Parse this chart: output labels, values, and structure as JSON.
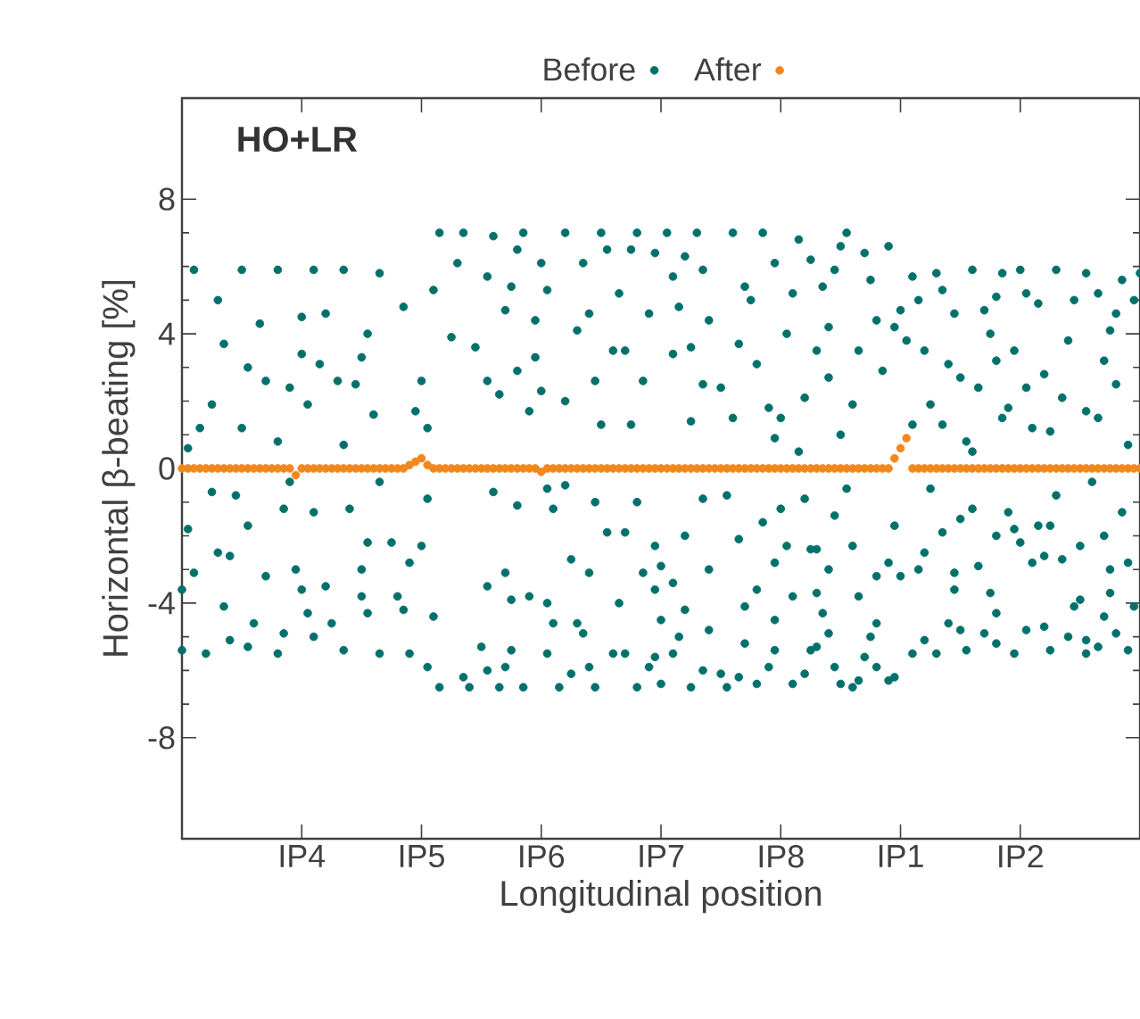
{
  "chart_data": {
    "type": "scatter",
    "xlabel": "Longitudinal position",
    "ylabel": "Horizontal β-beating [%]",
    "annotations": [
      "HO+LR"
    ],
    "legend": "top",
    "marker": "circle",
    "categories": [
      null,
      null,
      null,
      null,
      null,
      null,
      null,
      null,
      null,
      null,
      null,
      null,
      null,
      null,
      null,
      null,
      null,
      null,
      null,
      null,
      "IP4",
      null,
      null,
      null,
      null,
      null,
      null,
      null,
      null,
      null,
      null,
      null,
      null,
      null,
      null,
      null,
      null,
      null,
      null,
      null,
      "IP5",
      null,
      null,
      null,
      null,
      null,
      null,
      null,
      null,
      null,
      null,
      null,
      null,
      null,
      null,
      null,
      null,
      null,
      null,
      null,
      "IP6",
      null,
      null,
      null,
      null,
      null,
      null,
      null,
      null,
      null,
      null,
      null,
      null,
      null,
      null,
      null,
      null,
      null,
      null,
      null,
      "IP7",
      null,
      null,
      null,
      null,
      null,
      null,
      null,
      null,
      null,
      null,
      null,
      null,
      null,
      null,
      null,
      null,
      null,
      null,
      null,
      "IP8",
      null,
      null,
      null,
      null,
      null,
      null,
      null,
      null,
      null,
      null,
      null,
      null,
      null,
      null,
      null,
      null,
      null,
      null,
      null,
      "IP1",
      null,
      null,
      null,
      null,
      null,
      null,
      null,
      null,
      null,
      null,
      null,
      null,
      null,
      null,
      null,
      null,
      null,
      null,
      null,
      "IP2",
      null,
      null,
      null,
      null,
      null,
      null,
      null,
      null,
      null,
      null,
      null,
      null,
      null,
      null,
      null,
      null,
      null,
      null,
      null,
      null
    ],
    "ylim": [
      -11,
      11
    ],
    "yticks": [
      -8,
      -4,
      0,
      4,
      8
    ],
    "series": [
      {
        "name": "Before",
        "color": "#00706b",
        "values": [
          null,
          null,
          5.9,
          null,
          null,
          null,
          5.0,
          3.7,
          null,
          null,
          5.9,
          null,
          null,
          4.3,
          null,
          null,
          5.9,
          null,
          null,
          null,
          4.5,
          null,
          5.9,
          null,
          4.6,
          null,
          null,
          5.9,
          null,
          null,
          null,
          4.0,
          null,
          5.8,
          null,
          null,
          null,
          4.8,
          null,
          null,
          null,
          null,
          5.3,
          7.0,
          null,
          3.9,
          6.1,
          7.0,
          null,
          3.6,
          null,
          5.7,
          6.9,
          null,
          4.7,
          5.4,
          6.5,
          7.0,
          null,
          4.4,
          6.1,
          5.3,
          null,
          null,
          7.0,
          null,
          4.1,
          6.1,
          4.6,
          null,
          7.0,
          6.5,
          3.5,
          5.2,
          3.5,
          6.5,
          7.0,
          null,
          4.6,
          6.4,
          null,
          7.0,
          5.7,
          4.8,
          6.3,
          3.6,
          7.0,
          5.9,
          4.4,
          null,
          null,
          null,
          7.0,
          3.7,
          5.4,
          5.0,
          null,
          7.0,
          null,
          6.1,
          null,
          4.0,
          5.2,
          6.8,
          null,
          6.2,
          3.5,
          5.4,
          4.2,
          5.9,
          6.6,
          7.0,
          null,
          3.5,
          6.4,
          5.6,
          4.4,
          null,
          6.6,
          4.2,
          4.7,
          3.8,
          5.7,
          5.0,
          3.5,
          null,
          5.8,
          5.3,
          null,
          4.6,
          null,
          null,
          5.9,
          null,
          4.7,
          4.0,
          5.1,
          5.8,
          null,
          3.5,
          5.9,
          5.2,
          null,
          4.9,
          null,
          null,
          5.9,
          null,
          3.8,
          5.0,
          null,
          5.8,
          null,
          5.2,
          null,
          4.1,
          4.6,
          5.6,
          null,
          5.0,
          5.8
        ]
      },
      {
        "color": "#00706b",
        "values": [
          null,
          0.6,
          null,
          1.2,
          null,
          1.9,
          null,
          null,
          null,
          null,
          1.2,
          3.0,
          null,
          null,
          2.6,
          null,
          0.8,
          null,
          2.4,
          null,
          3.4,
          1.9,
          null,
          3.1,
          null,
          null,
          2.6,
          0.7,
          null,
          2.5,
          3.3,
          null,
          1.6,
          null,
          null,
          null,
          null,
          null,
          null,
          1.7,
          2.6,
          1.2,
          null,
          null,
          null,
          null,
          null,
          null,
          null,
          null,
          null,
          2.6,
          null,
          2.2,
          null,
          null,
          2.9,
          null,
          1.7,
          3.3,
          2.3,
          null,
          null,
          null,
          2.0,
          null,
          null,
          null,
          null,
          2.6,
          1.3,
          null,
          null,
          null,
          null,
          1.3,
          null,
          2.6,
          null,
          null,
          null,
          null,
          3.4,
          null,
          null,
          1.4,
          null,
          2.5,
          null,
          null,
          2.4,
          null,
          1.5,
          null,
          null,
          null,
          3.1,
          null,
          1.8,
          0.9,
          1.5,
          null,
          null,
          0.5,
          2.1,
          null,
          null,
          null,
          2.7,
          null,
          1.0,
          null,
          1.9,
          null,
          null,
          null,
          null,
          2.9,
          null,
          null,
          null,
          null,
          1.3,
          null,
          null,
          1.9,
          null,
          1.3,
          3.1,
          null,
          2.7,
          0.8,
          0.5,
          2.4,
          null,
          null,
          3.2,
          1.5,
          1.8,
          null,
          null,
          2.4,
          1.2,
          null,
          2.8,
          1.1,
          null,
          2.1,
          null,
          null,
          null,
          1.7,
          null,
          1.5,
          3.2,
          null,
          2.5,
          null,
          0.7,
          null,
          null
        ]
      },
      {
        "color": "#00706b",
        "values": [
          null,
          -1.8,
          -3.1,
          null,
          null,
          -0.7,
          -2.5,
          null,
          -2.6,
          -0.8,
          null,
          -1.7,
          null,
          null,
          -3.2,
          null,
          null,
          -1.2,
          -0.4,
          -3.0,
          null,
          null,
          -1.3,
          null,
          null,
          null,
          null,
          null,
          -1.2,
          null,
          -3.0,
          -2.2,
          null,
          -0.4,
          null,
          -2.2,
          null,
          null,
          -2.8,
          null,
          -2.3,
          -0.9,
          null,
          null,
          null,
          null,
          null,
          null,
          null,
          null,
          null,
          null,
          -0.7,
          null,
          -3.1,
          null,
          -1.1,
          null,
          null,
          null,
          null,
          -0.6,
          -1.2,
          null,
          -0.5,
          -2.7,
          null,
          null,
          -3.1,
          -1.0,
          null,
          -1.9,
          null,
          null,
          -1.9,
          null,
          -1.0,
          -3.1,
          null,
          -2.3,
          -2.9,
          null,
          -3.4,
          null,
          -2.0,
          null,
          null,
          -0.9,
          -3.0,
          null,
          null,
          -0.8,
          null,
          -2.1,
          null,
          null,
          null,
          -1.6,
          null,
          -2.8,
          -1.2,
          -2.3,
          null,
          null,
          -0.9,
          -2.4,
          -2.4,
          null,
          -3.0,
          -1.4,
          null,
          -0.6,
          -2.3,
          null,
          null,
          null,
          -3.2,
          null,
          -2.8,
          -1.7,
          -3.2,
          null,
          null,
          -3.0,
          -2.5,
          -0.6,
          null,
          -1.9,
          null,
          -3.1,
          -1.5,
          null,
          -1.2,
          -2.9,
          null,
          null,
          -2.0,
          null,
          -1.3,
          -1.8,
          -2.2,
          null,
          -2.8,
          -1.7,
          -2.6,
          -1.7,
          -0.8,
          -2.7,
          null,
          null,
          -2.3,
          null,
          -0.4,
          null,
          -2.0,
          -3.0,
          null,
          -1.3,
          -2.8,
          null,
          null
        ]
      },
      {
        "color": "#00706b",
        "values": [
          -3.6,
          null,
          null,
          null,
          null,
          null,
          null,
          -4.1,
          -5.1,
          null,
          null,
          null,
          -4.6,
          null,
          null,
          null,
          null,
          -4.9,
          null,
          null,
          -3.6,
          -4.3,
          -5.0,
          null,
          -3.5,
          -4.6,
          null,
          null,
          null,
          null,
          -3.8,
          -4.3,
          null,
          null,
          null,
          null,
          -3.8,
          -4.2,
          null,
          null,
          null,
          null,
          -4.4,
          null,
          null,
          null,
          null,
          null,
          null,
          null,
          null,
          -3.5,
          null,
          null,
          null,
          -3.9,
          null,
          null,
          -3.8,
          null,
          null,
          -4.0,
          -4.6,
          null,
          null,
          null,
          -4.6,
          -4.9,
          null,
          null,
          null,
          null,
          null,
          -4.0,
          null,
          null,
          null,
          null,
          null,
          -3.6,
          -4.5,
          null,
          null,
          -5.0,
          -4.2,
          null,
          null,
          null,
          -4.8,
          null,
          null,
          null,
          null,
          null,
          -4.1,
          null,
          -3.6,
          null,
          null,
          -4.5,
          null,
          null,
          -3.8,
          null,
          null,
          null,
          -3.7,
          -4.3,
          -4.9,
          null,
          null,
          null,
          null,
          -3.8,
          null,
          -5.0,
          -4.6,
          null,
          null,
          null,
          null,
          null,
          null,
          null,
          -5.1,
          null,
          null,
          null,
          -4.6,
          -3.6,
          -4.8,
          null,
          null,
          null,
          -4.9,
          -3.7,
          -4.3,
          null,
          null,
          null,
          null,
          -4.8,
          null,
          null,
          -4.7,
          null,
          null,
          null,
          -5.0,
          -4.1,
          -3.9,
          -5.1,
          null,
          null,
          -4.4,
          -3.7,
          -4.9,
          null,
          null,
          -4.1,
          null
        ]
      },
      {
        "color": "#00706b",
        "values": [
          -5.4,
          null,
          null,
          null,
          -5.5,
          null,
          null,
          null,
          null,
          null,
          null,
          -5.3,
          null,
          null,
          null,
          null,
          -5.5,
          null,
          null,
          null,
          null,
          null,
          null,
          null,
          null,
          null,
          null,
          -5.4,
          null,
          null,
          null,
          null,
          null,
          -5.5,
          null,
          null,
          null,
          null,
          -5.5,
          null,
          null,
          -5.9,
          null,
          -6.5,
          null,
          null,
          null,
          -6.2,
          -6.5,
          null,
          -5.3,
          -6.0,
          null,
          -6.5,
          -5.9,
          -5.4,
          null,
          -6.5,
          null,
          null,
          null,
          -5.5,
          null,
          -6.5,
          null,
          -6.1,
          null,
          null,
          -5.9,
          -6.5,
          null,
          null,
          -5.5,
          null,
          -5.5,
          null,
          -6.5,
          null,
          -5.9,
          -5.6,
          -6.4,
          null,
          -5.5,
          null,
          null,
          -6.5,
          null,
          -6.0,
          null,
          null,
          -6.1,
          -6.5,
          null,
          -6.2,
          -5.2,
          null,
          -6.4,
          null,
          -5.9,
          -5.4,
          null,
          null,
          -6.4,
          null,
          -6.1,
          -5.4,
          -5.3,
          null,
          null,
          -5.9,
          -6.4,
          null,
          -6.5,
          -6.3,
          -5.6,
          null,
          -5.9,
          null,
          -6.3,
          -6.2,
          null,
          null,
          -5.5,
          null,
          null,
          null,
          -5.5,
          null,
          null,
          null,
          null,
          -5.4,
          null,
          null,
          null,
          null,
          -5.2,
          null,
          null,
          -5.5,
          null,
          null,
          null,
          null,
          null,
          -5.4,
          null,
          null,
          null,
          null,
          null,
          -5.5,
          null,
          -5.3,
          null,
          null,
          null,
          null,
          -5.4,
          null,
          null
        ]
      },
      {
        "name": "After",
        "color": "#f0881e",
        "values": [
          0,
          0,
          0,
          0,
          0,
          0,
          0,
          0,
          0,
          0,
          0,
          0,
          0,
          0,
          0,
          0,
          0,
          0,
          0,
          -0.2,
          0,
          0,
          0,
          0,
          0,
          0,
          0,
          0,
          0,
          0,
          0,
          0,
          0,
          0,
          0,
          0,
          0,
          0,
          0.1,
          0.2,
          0.3,
          0.1,
          0,
          0,
          0,
          0,
          0,
          0,
          0,
          0,
          0,
          0,
          0,
          0,
          0,
          0,
          0,
          0,
          0,
          0,
          -0.1,
          0,
          0,
          0,
          0,
          0,
          0,
          0,
          0,
          0,
          0,
          0,
          0,
          0,
          0,
          0,
          0,
          0,
          0,
          0,
          0,
          0,
          0,
          0,
          0,
          0,
          0,
          0,
          0,
          0,
          0,
          0,
          0,
          0,
          0,
          0,
          0,
          0,
          0,
          0,
          0,
          0,
          0,
          0,
          0,
          0,
          0,
          0,
          0,
          0,
          0,
          0,
          0,
          0,
          0,
          0,
          0,
          0,
          0,
          0.3,
          0.6,
          0.9,
          0,
          0,
          0,
          0,
          0,
          0,
          0,
          0,
          0,
          0,
          0,
          0,
          0,
          0,
          0,
          0,
          0,
          0,
          0,
          0,
          0,
          0,
          0,
          0,
          0,
          0,
          0,
          0,
          0,
          0,
          0,
          0,
          0,
          0,
          0,
          0,
          0,
          0,
          0
        ]
      }
    ]
  }
}
